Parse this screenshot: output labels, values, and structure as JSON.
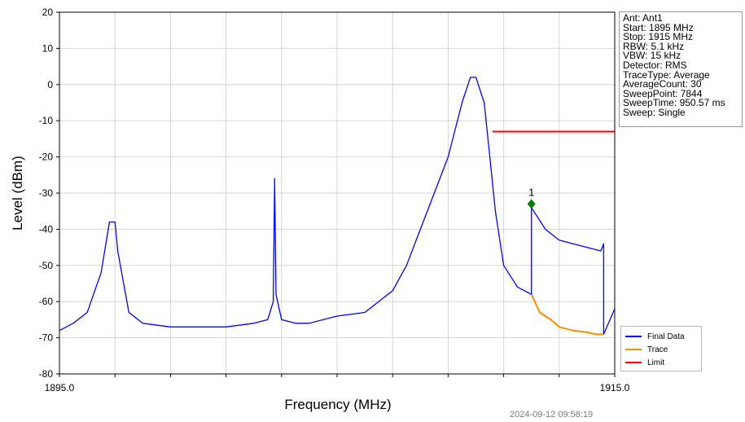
{
  "chart_data": {
    "type": "line",
    "xlabel": "Frequency (MHz)",
    "ylabel": "Level (dBm)",
    "xlim": [
      1895.0,
      1915.0
    ],
    "ylim": [
      -80,
      20
    ],
    "x_ticks": [
      1895.0,
      1915.0
    ],
    "x_tick_labels": [
      "1895.0",
      "1915.0"
    ],
    "y_ticks": [
      20,
      10,
      0,
      -10,
      -20,
      -30,
      -40,
      -50,
      -60,
      -70,
      -80
    ],
    "grid": true,
    "legend_position": "bottom-right",
    "series": [
      {
        "name": "Final Data",
        "color": "#0000ff",
        "x": [
          1895.0,
          1895.5,
          1896.0,
          1896.5,
          1896.8,
          1897.0,
          1897.1,
          1897.5,
          1898.0,
          1899.0,
          1900.0,
          1901.0,
          1902.0,
          1902.5,
          1902.7,
          1902.75,
          1902.8,
          1903.0,
          1903.5,
          1904.0,
          1905.0,
          1906.0,
          1907.0,
          1907.5,
          1908.0,
          1908.5,
          1909.0,
          1909.5,
          1909.8,
          1910.0,
          1910.3,
          1910.5,
          1910.7,
          1911.0,
          1911.5,
          1912.0,
          1912.0,
          1912.5,
          1913.0,
          1913.5,
          1914.0,
          1914.5,
          1914.55,
          1914.6,
          1914.6,
          1915.0
        ],
        "y": [
          -68,
          -66,
          -63,
          -52,
          -38,
          -38,
          -46,
          -63,
          -66,
          -67,
          -67,
          -67,
          -66,
          -65,
          -60,
          -26,
          -58,
          -65,
          -66,
          -66,
          -64,
          -63,
          -57,
          -50,
          -40,
          -30,
          -20,
          -5,
          2,
          2,
          -5,
          -20,
          -35,
          -50,
          -56,
          -58,
          -34,
          -40,
          -43,
          -44,
          -45,
          -46,
          -45,
          -44,
          -69,
          -62
        ]
      },
      {
        "name": "Trace",
        "color": "#ff8c00",
        "x": [
          1912.0,
          1912.3,
          1912.7,
          1913.0,
          1913.5,
          1914.0,
          1914.3,
          1914.6
        ],
        "y": [
          -58,
          -63,
          -65,
          -67,
          -68,
          -68.5,
          -69,
          -69
        ]
      },
      {
        "name": "Limit",
        "color": "#ff0000",
        "x": [
          1910.6,
          1915.0
        ],
        "y": [
          -13,
          -13
        ]
      }
    ],
    "annotations": [
      {
        "type": "marker",
        "label": "1",
        "x": 1912.0,
        "y": -33,
        "color": "#008000"
      }
    ]
  },
  "info_panel": {
    "lines": [
      "Ant: Ant1",
      "Start: 1895 MHz",
      "Stop: 1915 MHz",
      "RBW: 5.1 kHz",
      "VBW: 15 kHz",
      "Detector: RMS",
      "TraceType: Average",
      "AverageCount: 30",
      "SweepPoint: 7844",
      "SweepTime: 950.57 ms",
      "Sweep: Single"
    ]
  },
  "timestamp": "2024-09-12 09:58:19"
}
